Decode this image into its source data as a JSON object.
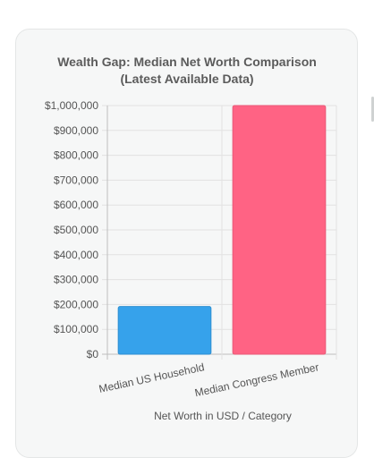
{
  "chart_data": {
    "type": "bar",
    "title": "Wealth Gap: Median Net Worth Comparison",
    "subtitle": "(Latest Available Data)",
    "xlabel": "Net Worth in USD / Category",
    "ylabel": "",
    "categories": [
      "Median US Household",
      "Median Congress Member"
    ],
    "values": [
      192000,
      1000000
    ],
    "bar_colors": [
      "#36a2eb",
      "#ff6384"
    ],
    "bar_border_colors": [
      "#2f8fd1",
      "#e85a77"
    ],
    "ylim": [
      0,
      1000000
    ],
    "yticks": [
      0,
      100000,
      200000,
      300000,
      400000,
      500000,
      600000,
      700000,
      800000,
      900000,
      1000000
    ],
    "ytick_labels": [
      "$0",
      "$100,000",
      "$200,000",
      "$300,000",
      "$400,000",
      "$500,000",
      "$600,000",
      "$700,000",
      "$800,000",
      "$900,000",
      "$1,000,000"
    ],
    "grid": true,
    "legend": "none"
  }
}
